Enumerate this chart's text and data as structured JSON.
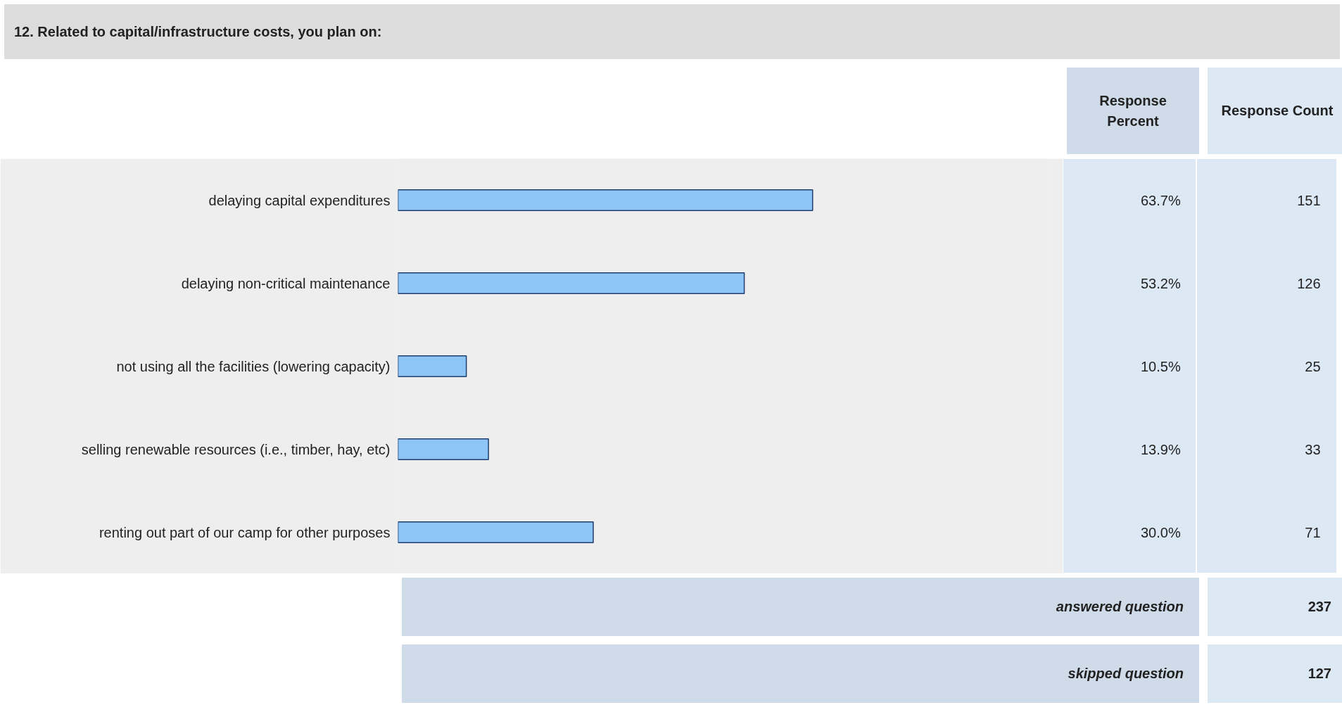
{
  "chart_data": {
    "type": "bar",
    "orientation": "horizontal",
    "title": "12. Related to capital/infrastructure costs, you plan on:",
    "categories": [
      "delaying capital expenditures",
      "delaying non-critical maintenance",
      "not using all the facilities (lowering capacity)",
      "selling renewable resources (i.e., timber, hay, etc)",
      "renting out part of our camp for other purposes"
    ],
    "values": [
      63.7,
      53.2,
      10.5,
      13.9,
      30.0
    ],
    "value_labels": [
      "63.7%",
      "53.2%",
      "10.5%",
      "13.9%",
      "30.0%"
    ],
    "color": "#8ec5f7",
    "xlim": [
      0,
      100
    ],
    "tick_labels": "y",
    "annotations": [
      "Response Percent",
      "Response Count",
      "151",
      "126",
      "25",
      "33",
      "71",
      "answered question",
      "237",
      "skipped question",
      "127"
    ]
  }
}
